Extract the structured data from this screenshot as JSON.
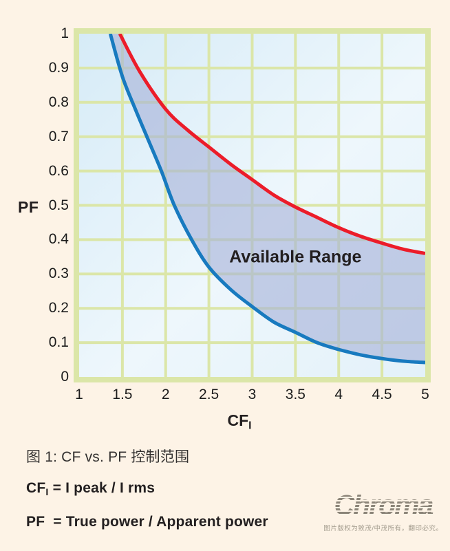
{
  "colors": {
    "page_bg": "#fdf3e6",
    "grid": "#dbe6a8",
    "plot_bg_top": "#d6ebf7",
    "plot_bg_mid": "#eef7fc",
    "plot_bg_bottom": "#e3f1f9",
    "region_fill": "rgba(167,178,216,0.62)",
    "upper_curve": "#ec1c29",
    "lower_curve": "#187abf",
    "text": "#231f20"
  },
  "chart_data": {
    "type": "area",
    "title": "",
    "xlabel_main": "CF",
    "xlabel_sub": "I",
    "ylabel": "PF",
    "xlim": [
      1,
      5
    ],
    "ylim": [
      0,
      1
    ],
    "grid": true,
    "x_ticks": {
      "values": [
        1,
        1.5,
        2,
        2.5,
        3,
        3.5,
        4,
        4.5,
        5
      ],
      "labels": [
        "1",
        "1.5",
        "2",
        "2.5",
        "3",
        "3.5",
        "4",
        "4.5",
        "5"
      ]
    },
    "y_ticks": {
      "values": [
        1,
        0.9,
        0.8,
        0.7,
        0.6,
        0.5,
        0.4,
        0.3,
        0.2,
        0.1,
        0
      ],
      "labels": [
        "1",
        "0.9",
        "0.8",
        "0.7",
        "0.6",
        "0.5",
        "0.4",
        "0.3",
        "0.2",
        "0.1",
        "0"
      ]
    },
    "annotation": {
      "text": "Available Range",
      "x": 3.5,
      "y": 0.347
    },
    "series": [
      {
        "name": "upper-limit",
        "color": "#ec1c29",
        "x": [
          1.47,
          1.7,
          2.0,
          2.25,
          2.5,
          2.75,
          3.0,
          3.25,
          3.5,
          3.75,
          4.0,
          4.25,
          4.5,
          4.75,
          5.0
        ],
        "y": [
          1.0,
          0.89,
          0.78,
          0.72,
          0.67,
          0.62,
          0.575,
          0.53,
          0.495,
          0.465,
          0.435,
          0.41,
          0.39,
          0.372,
          0.36
        ]
      },
      {
        "name": "lower-limit",
        "color": "#187abf",
        "x": [
          1.36,
          1.5,
          1.65,
          1.8,
          1.95,
          2.1,
          2.3,
          2.5,
          2.75,
          3.0,
          3.25,
          3.5,
          3.75,
          4.0,
          4.3,
          4.6,
          4.8,
          5.0
        ],
        "y": [
          1.0,
          0.875,
          0.78,
          0.69,
          0.6,
          0.5,
          0.4,
          0.32,
          0.255,
          0.205,
          0.16,
          0.13,
          0.1,
          0.08,
          0.062,
          0.05,
          0.045,
          0.042
        ]
      }
    ]
  },
  "caption": "图 1: CF vs. PF 控制范围",
  "formulas": {
    "cf_main": "CF",
    "cf_sub": "I",
    "cf_rest": " = I peak / I rms",
    "pf": "PF  = True power / Apparent power"
  },
  "logo": {
    "text": "Chroma",
    "tagline": "图片版权为致茂/中茂所有，翻印必究。"
  }
}
